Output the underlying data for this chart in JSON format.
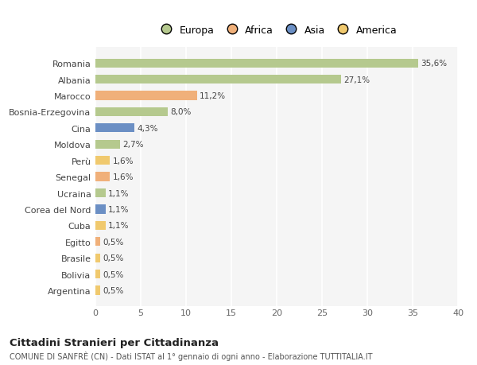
{
  "countries": [
    "Romania",
    "Albania",
    "Marocco",
    "Bosnia-Erzegovina",
    "Cina",
    "Moldova",
    "Perù",
    "Senegal",
    "Ucraina",
    "Corea del Nord",
    "Cuba",
    "Egitto",
    "Brasile",
    "Bolivia",
    "Argentina"
  ],
  "values": [
    35.6,
    27.1,
    11.2,
    8.0,
    4.3,
    2.7,
    1.6,
    1.6,
    1.1,
    1.1,
    1.1,
    0.5,
    0.5,
    0.5,
    0.5
  ],
  "labels": [
    "35,6%",
    "27,1%",
    "11,2%",
    "8,0%",
    "4,3%",
    "2,7%",
    "1,6%",
    "1,6%",
    "1,1%",
    "1,1%",
    "1,1%",
    "0,5%",
    "0,5%",
    "0,5%",
    "0,5%"
  ],
  "colors": [
    "#b5c98e",
    "#b5c98e",
    "#f0b07a",
    "#b5c98e",
    "#6b8fc4",
    "#b5c98e",
    "#f0c96e",
    "#f0b07a",
    "#b5c98e",
    "#6b8fc4",
    "#f0c96e",
    "#f0b07a",
    "#f0c96e",
    "#f0c96e",
    "#f0c96e"
  ],
  "legend_labels": [
    "Europa",
    "Africa",
    "Asia",
    "America"
  ],
  "legend_colors": [
    "#b5c98e",
    "#f0b07a",
    "#6b8fc4",
    "#f0c96e"
  ],
  "xlim": [
    0,
    40
  ],
  "xticks": [
    0,
    5,
    10,
    15,
    20,
    25,
    30,
    35,
    40
  ],
  "title": "Cittadini Stranieri per Cittadinanza",
  "subtitle": "COMUNE DI SANFRÈ (CN) - Dati ISTAT al 1° gennaio di ogni anno - Elaborazione TUTTITALIA.IT",
  "bg_color": "#ffffff",
  "plot_bg_color": "#f5f5f5",
  "grid_color": "#ffffff",
  "bar_height": 0.55
}
